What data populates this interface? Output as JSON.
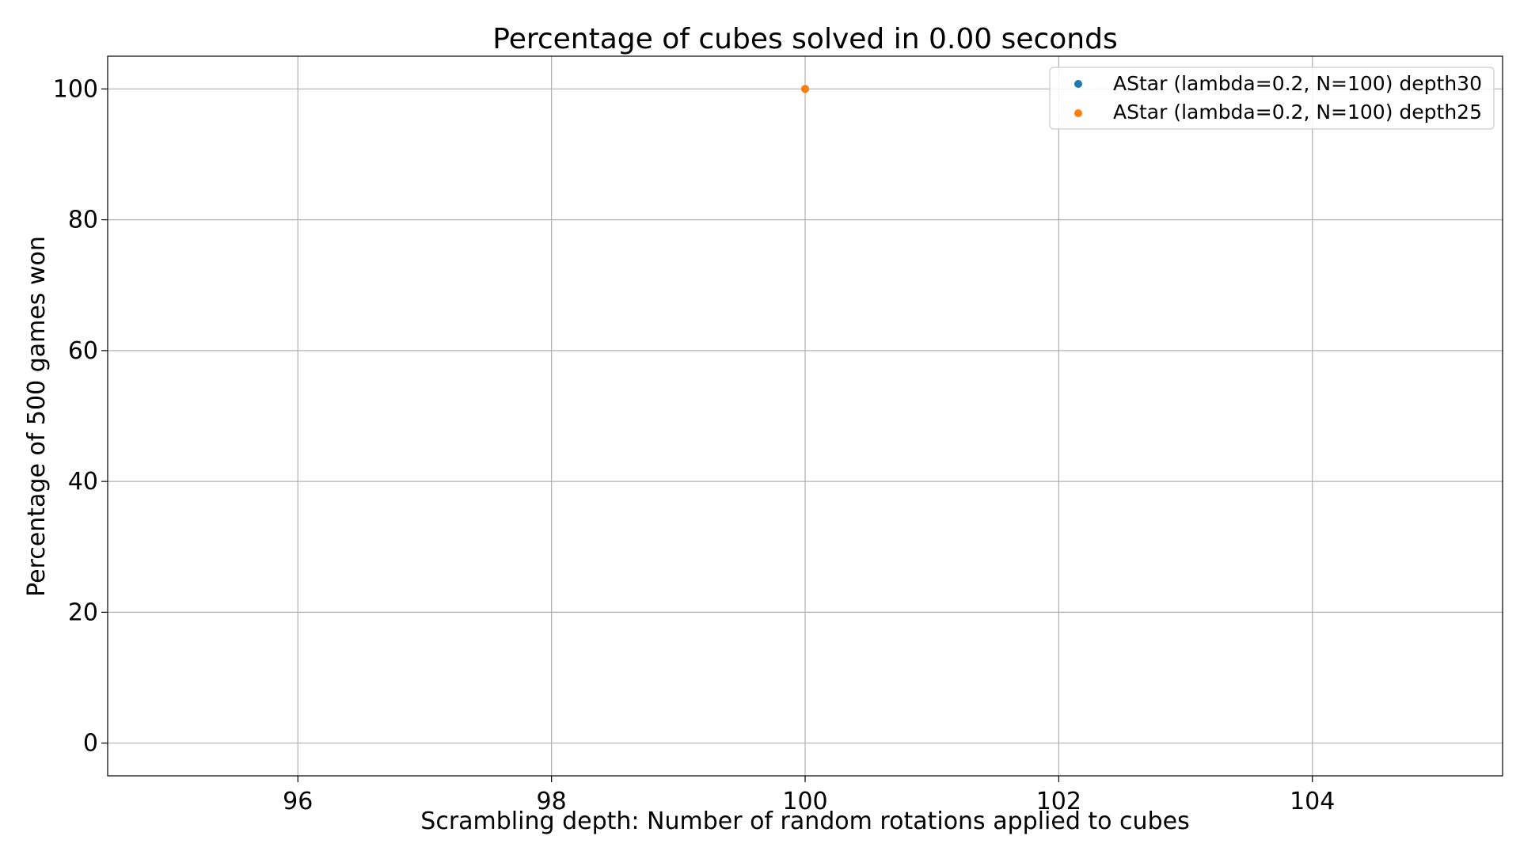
{
  "chart_data": {
    "type": "scatter",
    "title": "Percentage of cubes solved in 0.00 seconds",
    "xlabel": "Scrambling depth: Number of random rotations applied to cubes",
    "ylabel": "Percentage of 500 games won",
    "xlim": [
      94.5,
      105.5
    ],
    "ylim": [
      -5,
      105
    ],
    "xticks": [
      96,
      98,
      100,
      102,
      104
    ],
    "yticks": [
      0,
      20,
      40,
      60,
      80,
      100
    ],
    "grid": true,
    "legend_position": "top-right",
    "series": [
      {
        "name": "AStar (lambda=0.2, N=100) depth30",
        "color": "#1f77b4",
        "points": [
          [
            100,
            100
          ]
        ]
      },
      {
        "name": "AStar (lambda=0.2, N=100) depth25",
        "color": "#ff7f0e",
        "points": [
          [
            100,
            100
          ]
        ]
      }
    ]
  }
}
